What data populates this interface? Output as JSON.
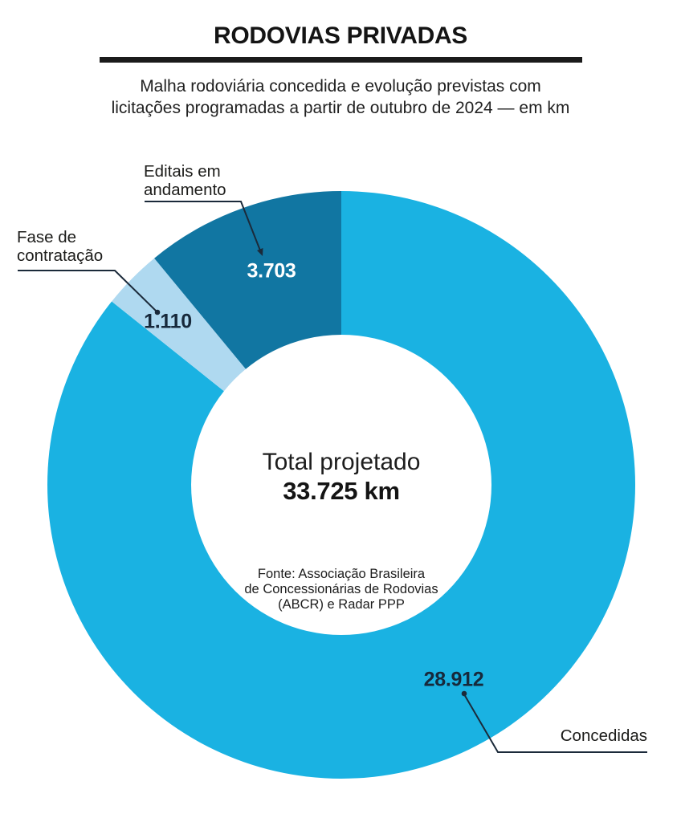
{
  "header": {
    "title": "RODOVIAS PRIVADAS",
    "subtitle_line1": "Malha rodoviária concedida e evolução previstas com",
    "subtitle_line2": "licitações programadas a partir de outubro de 2024 — em km"
  },
  "chart_data": {
    "type": "pie",
    "donut": true,
    "title": "RODOVIAS PRIVADAS",
    "subtitle": "Malha rodoviária concedida e evolução previstas com licitações programadas a partir de outubro de 2024 — em km",
    "unit": "km",
    "total": 33725,
    "center_label": "Total projetado",
    "center_value": "33.725 km",
    "start_angle_deg": 0,
    "direction": "clockwise",
    "donut_inner_ratio": 0.51,
    "segments": [
      {
        "id": "concedidas",
        "label": "Concedidas",
        "value": 28912,
        "display_value": "28.912",
        "color": "#1ab2e2"
      },
      {
        "id": "fase-de-contratacao",
        "label": "Fase de contratação",
        "label_line1": "Fase de",
        "label_line2": "contratação",
        "value": 1110,
        "display_value": "1.110",
        "color": "#afd9f0"
      },
      {
        "id": "editais-em-andamento",
        "label": "Editais em andamento",
        "label_line1": "Editais em",
        "label_line2": "andamento",
        "value": 3703,
        "display_value": "3.703",
        "color": "#1176a2"
      }
    ]
  },
  "source": {
    "line1": "Fonte: Associação Brasileira",
    "line2": "de Concessionárias de Rodovias",
    "line3": "(ABCR) e Radar PPP"
  },
  "colors": {
    "concedidas": "#1ab2e2",
    "fase_contratacao": "#afd9f0",
    "editais_andamento": "#1176a2",
    "annotation_line": "#1b2a3a",
    "title_rule": "#1b1b1b",
    "value_navy": "#17293b"
  }
}
